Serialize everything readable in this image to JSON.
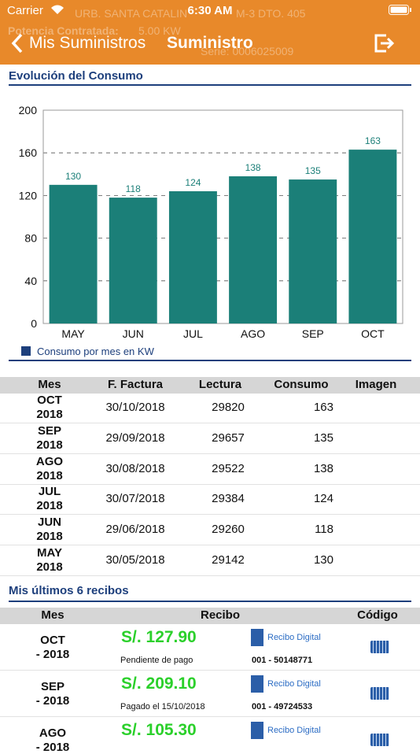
{
  "status_bar": {
    "carrier": "Carrier",
    "time": "6:30 AM"
  },
  "background_info": {
    "address_left": "URB. SANTA CATALIN",
    "address_right": "M-3 DTO. 405",
    "power_label": "Potencia Contratada:",
    "power_value": "5.00 KW",
    "meter_serial": "Serie: 0006025009"
  },
  "nav": {
    "back": "Mis Suministros",
    "title": "Suministro"
  },
  "consumption_section": {
    "title": "Evolución del Consumo"
  },
  "chart_data": {
    "type": "bar",
    "categories": [
      "MAY",
      "JUN",
      "JUL",
      "AGO",
      "SEP",
      "OCT"
    ],
    "series": [
      {
        "name": "Consumo por mes en KW",
        "color": "#1b7f78",
        "values": [
          130,
          118,
          124,
          138,
          135,
          163
        ]
      }
    ],
    "ylim": [
      0,
      200
    ],
    "yticks": [
      0,
      40,
      80,
      120,
      160,
      200
    ],
    "grid": true,
    "legend": "bottom-left"
  },
  "readings_table": {
    "headers": [
      "Mes",
      "F. Factura",
      "Lectura",
      "Consumo",
      "Imagen"
    ],
    "rows": [
      [
        "OCT",
        "2018",
        "30/10/2018",
        "29820",
        "163"
      ],
      [
        "SEP",
        "2018",
        "29/09/2018",
        "29657",
        "135"
      ],
      [
        "AGO",
        "2018",
        "30/08/2018",
        "29522",
        "138"
      ],
      [
        "JUL",
        "2018",
        "30/07/2018",
        "29384",
        "124"
      ],
      [
        "JUN",
        "2018",
        "29/06/2018",
        "29260",
        "118"
      ],
      [
        "MAY",
        "2018",
        "30/05/2018",
        "29142",
        "130"
      ]
    ]
  },
  "receipts_section": {
    "title": "Mis últimos 6 recibos"
  },
  "receipts_table": {
    "headers": [
      "Mes",
      "Recibo",
      "Código"
    ],
    "rows": [
      {
        "month": "OCT",
        "year": "- 2018",
        "amount": "S/. 127.90",
        "status": "Pendiente de pago",
        "link": "Recibo Digital",
        "code": "001 - 50148771"
      },
      {
        "month": "SEP",
        "year": "- 2018",
        "amount": "S/. 209.10",
        "status": "Pagado el 15/10/2018",
        "link": "Recibo Digital",
        "code": "001 - 49724533"
      },
      {
        "month": "AGO",
        "year": "- 2018",
        "amount": "S/. 105.30",
        "link": "Recibo Digital"
      }
    ]
  }
}
